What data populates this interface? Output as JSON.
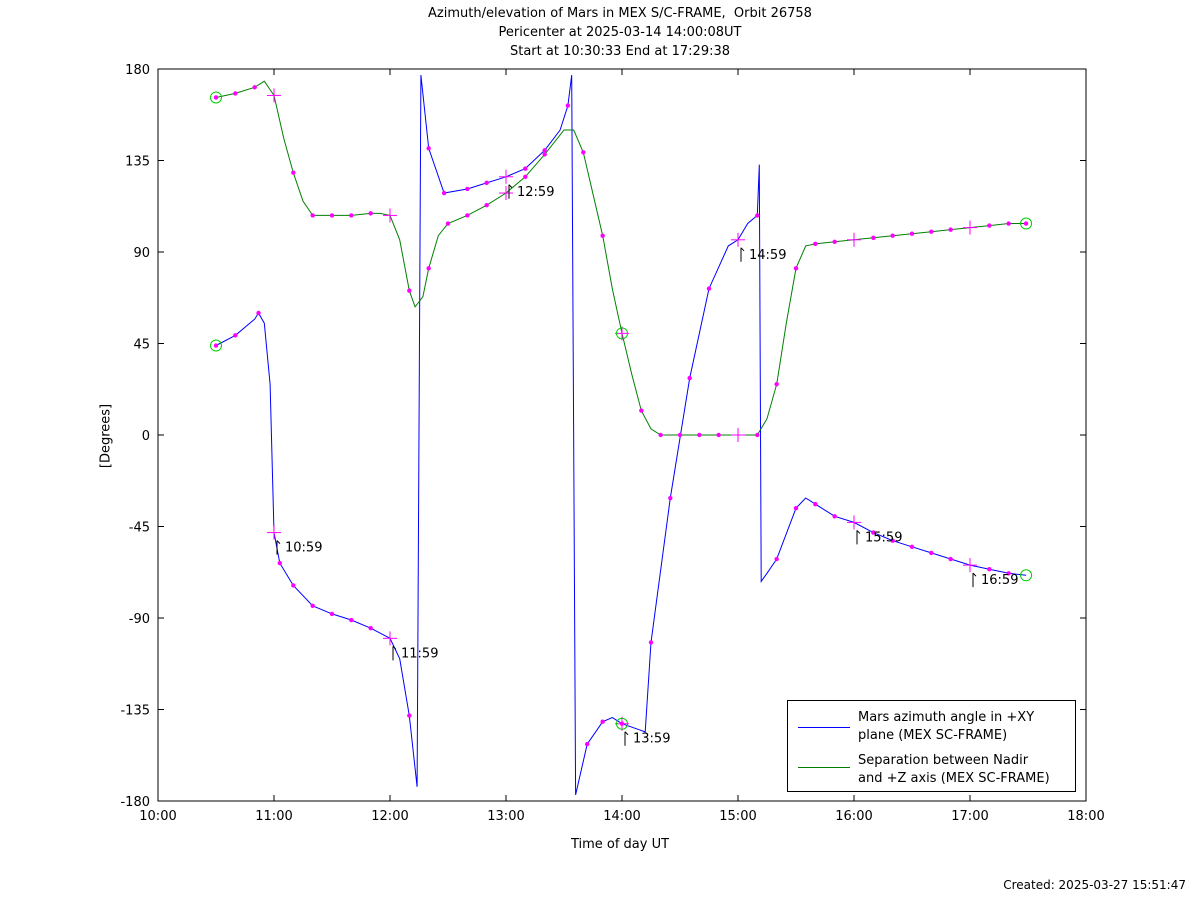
{
  "title": {
    "line1": "Azimuth/elevation of Mars in MEX S/C-FRAME,  Orbit 26758",
    "line2": "Pericenter at 2025-03-14 14:00:08UT",
    "line3": "Start at 10:30:33 End at 17:29:38"
  },
  "created": "Created: 2025-03-27 15:51:47",
  "legend": {
    "items": [
      {
        "line1": "Mars azimuth angle in +XY",
        "line2": "plane (MEX SC-FRAME)",
        "color": "#0000ff"
      },
      {
        "line1": "Separation between Nadir",
        "line2": "and +Z axis (MEX SC-FRAME)",
        "color": "#008000"
      }
    ],
    "placement": "bottom-right"
  },
  "chart_data": {
    "type": "line",
    "title": "Azimuth/elevation of Mars in MEX S/C-FRAME,  Orbit 26758",
    "xlabel": "Time of day UT",
    "ylabel": "[Degrees]",
    "xlim": [
      "10:00",
      "18:00"
    ],
    "ylim": [
      -180,
      180
    ],
    "xticks": [
      "10:00",
      "11:00",
      "12:00",
      "13:00",
      "14:00",
      "15:00",
      "16:00",
      "17:00",
      "18:00"
    ],
    "yticks": [
      180,
      135,
      90,
      45,
      0,
      -45,
      -90,
      -135,
      -180
    ],
    "grid": false,
    "marker_color": "#ff00ff",
    "endpoint_marker_color": "#00cc00",
    "series": [
      {
        "name": "Mars azimuth angle in +XY plane (MEX SC-FRAME)",
        "color": "#0000ff",
        "points": [
          [
            "10:30",
            44
          ],
          [
            "10:40",
            49
          ],
          [
            "10:50",
            57
          ],
          [
            "10:52",
            60
          ],
          [
            "10:55",
            55
          ],
          [
            "10:58",
            25
          ],
          [
            "11:00",
            -48
          ],
          [
            "11:03",
            -63
          ],
          [
            "11:10",
            -74
          ],
          [
            "11:20",
            -84
          ],
          [
            "11:30",
            -88
          ],
          [
            "11:40",
            -91
          ],
          [
            "11:50",
            -95
          ],
          [
            "12:00",
            -100
          ],
          [
            "12:05",
            -110
          ],
          [
            "12:10",
            -138
          ],
          [
            "12:14",
            -173
          ],
          [
            "12:16",
            177
          ],
          [
            "12:20",
            141
          ],
          [
            "12:28",
            119
          ],
          [
            "12:40",
            121
          ],
          [
            "12:50",
            124
          ],
          [
            "13:00",
            127
          ],
          [
            "13:10",
            131
          ],
          [
            "13:20",
            140
          ],
          [
            "13:28",
            150
          ],
          [
            "13:32",
            162
          ],
          [
            "13:34",
            177
          ],
          [
            "13:36",
            -177
          ],
          [
            "13:42",
            -152
          ],
          [
            "13:50",
            -141
          ],
          [
            "13:55",
            -139
          ],
          [
            "14:00",
            -142
          ],
          [
            "14:09",
            -145
          ],
          [
            "14:12",
            -146
          ],
          [
            "14:15",
            -102
          ],
          [
            "14:25",
            -31
          ],
          [
            "14:35",
            28
          ],
          [
            "14:45",
            72
          ],
          [
            "14:55",
            93
          ],
          [
            "15:00",
            96
          ],
          [
            "15:05",
            104
          ],
          [
            "15:10",
            108
          ],
          [
            "15:11",
            133
          ],
          [
            "15:12",
            -72
          ],
          [
            "15:15",
            -68
          ],
          [
            "15:20",
            -61
          ],
          [
            "15:30",
            -36
          ],
          [
            "15:35",
            -31
          ],
          [
            "15:40",
            -34
          ],
          [
            "15:50",
            -40
          ],
          [
            "16:00",
            -43
          ],
          [
            "16:10",
            -48
          ],
          [
            "16:20",
            -52
          ],
          [
            "16:30",
            -55
          ],
          [
            "16:40",
            -58
          ],
          [
            "16:50",
            -61
          ],
          [
            "17:00",
            -64
          ],
          [
            "17:10",
            -66
          ],
          [
            "17:20",
            -68
          ],
          [
            "17:29",
            -69
          ]
        ],
        "markers": [
          "10:30",
          "10:40",
          "10:52",
          "11:03",
          "11:10",
          "11:20",
          "11:30",
          "11:40",
          "11:50",
          "12:10",
          "12:20",
          "12:28",
          "12:40",
          "12:50",
          "13:10",
          "13:20",
          "13:32",
          "13:42",
          "13:50",
          "14:00",
          "14:15",
          "14:25",
          "14:35",
          "14:45",
          "15:10",
          "15:20",
          "15:30",
          "15:40",
          "15:50",
          "16:10",
          "16:20",
          "16:30",
          "16:40",
          "16:50",
          "17:10",
          "17:20"
        ],
        "crosses": [
          "11:00",
          "12:00",
          "13:00",
          "14:00",
          "15:00",
          "16:00",
          "17:00"
        ],
        "time_labels": [
          {
            "time": "11:00",
            "label": "10:59"
          },
          {
            "time": "12:00",
            "label": "11:59"
          },
          {
            "time": "13:00",
            "label": "12:59"
          },
          {
            "time": "14:00",
            "label": "13:59"
          },
          {
            "time": "15:00",
            "label": "14:59"
          },
          {
            "time": "16:00",
            "label": "15:59"
          },
          {
            "time": "17:00",
            "label": "16:59"
          }
        ]
      },
      {
        "name": "Separation between Nadir and +Z axis (MEX SC-FRAME)",
        "color": "#008000",
        "points": [
          [
            "10:30",
            166
          ],
          [
            "10:40",
            168
          ],
          [
            "10:50",
            171
          ],
          [
            "10:55",
            174
          ],
          [
            "11:00",
            167
          ],
          [
            "11:05",
            146
          ],
          [
            "11:10",
            129
          ],
          [
            "11:15",
            115
          ],
          [
            "11:20",
            108
          ],
          [
            "11:30",
            108
          ],
          [
            "11:40",
            108
          ],
          [
            "11:50",
            109
          ],
          [
            "11:55",
            109
          ],
          [
            "12:00",
            108
          ],
          [
            "12:05",
            96
          ],
          [
            "12:10",
            71
          ],
          [
            "12:13",
            63
          ],
          [
            "12:17",
            68
          ],
          [
            "12:20",
            82
          ],
          [
            "12:25",
            98
          ],
          [
            "12:30",
            104
          ],
          [
            "12:40",
            108
          ],
          [
            "12:50",
            113
          ],
          [
            "13:00",
            119
          ],
          [
            "13:10",
            127
          ],
          [
            "13:20",
            138
          ],
          [
            "13:30",
            150
          ],
          [
            "13:35",
            150
          ],
          [
            "13:40",
            139
          ],
          [
            "13:50",
            98
          ],
          [
            "13:55",
            72
          ],
          [
            "14:00",
            50
          ],
          [
            "14:05",
            30
          ],
          [
            "14:10",
            12
          ],
          [
            "14:15",
            3
          ],
          [
            "14:20",
            0
          ],
          [
            "14:30",
            0
          ],
          [
            "14:40",
            0
          ],
          [
            "14:50",
            0
          ],
          [
            "15:00",
            0
          ],
          [
            "15:10",
            0
          ],
          [
            "15:15",
            8
          ],
          [
            "15:20",
            25
          ],
          [
            "15:25",
            55
          ],
          [
            "15:30",
            82
          ],
          [
            "15:35",
            93
          ],
          [
            "15:40",
            94
          ],
          [
            "15:50",
            95
          ],
          [
            "16:00",
            96
          ],
          [
            "16:10",
            97
          ],
          [
            "16:20",
            98
          ],
          [
            "16:30",
            99
          ],
          [
            "16:40",
            100
          ],
          [
            "16:50",
            101
          ],
          [
            "17:00",
            102
          ],
          [
            "17:10",
            103
          ],
          [
            "17:20",
            104
          ],
          [
            "17:29",
            104
          ]
        ],
        "markers": [
          "10:30",
          "10:40",
          "10:50",
          "11:10",
          "11:20",
          "11:30",
          "11:40",
          "11:50",
          "12:10",
          "12:20",
          "12:30",
          "12:40",
          "12:50",
          "13:10",
          "13:20",
          "13:40",
          "13:50",
          "14:10",
          "14:20",
          "14:30",
          "14:40",
          "14:50",
          "15:10",
          "15:20",
          "15:30",
          "15:40",
          "15:50",
          "16:10",
          "16:20",
          "16:30",
          "16:40",
          "16:50",
          "17:10",
          "17:20",
          "17:29"
        ],
        "crosses": [
          "11:00",
          "12:00",
          "13:00",
          "14:00",
          "15:00",
          "16:00",
          "17:00"
        ],
        "endpoints": [
          "10:30",
          "14:00",
          "17:29"
        ]
      }
    ],
    "endpoints_azimuth": [
      "10:30",
      "14:00",
      "17:29"
    ]
  }
}
